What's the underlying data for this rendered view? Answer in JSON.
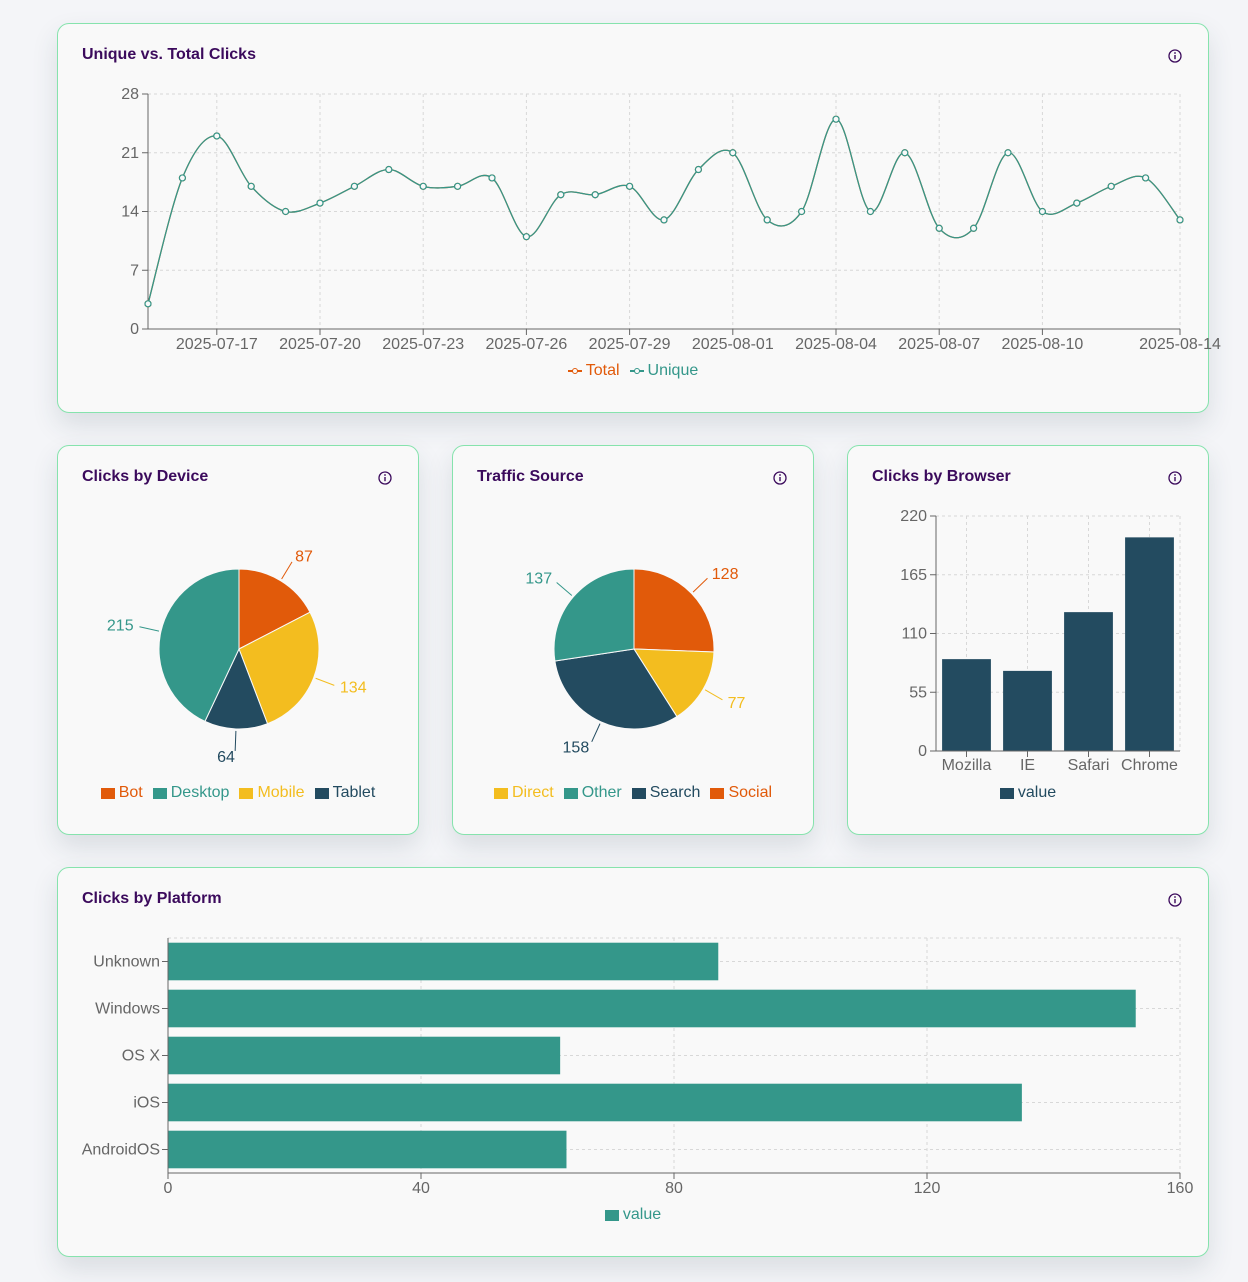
{
  "colors": {
    "teal": "#34978a",
    "navy": "#234b60",
    "orange": "#e15a0a",
    "yellow": "#f3bd1f",
    "title": "#3b0a5c",
    "border": "#86e3ad"
  },
  "cards": {
    "clicks_over_time": {
      "title": "Unique vs. Total Clicks",
      "icon": "info-icon"
    },
    "device": {
      "title": "Clicks by Device",
      "icon": "info-icon"
    },
    "traffic": {
      "title": "Traffic Source",
      "icon": "info-icon"
    },
    "browser": {
      "title": "Clicks by Browser",
      "icon": "info-icon"
    },
    "platform": {
      "title": "Clicks by Platform",
      "icon": "info-icon"
    }
  },
  "chart_data": [
    {
      "id": "clicks_over_time",
      "type": "line",
      "title": "Unique vs. Total Clicks",
      "x": [
        "2025-07-15",
        "2025-07-16",
        "2025-07-17",
        "2025-07-18",
        "2025-07-19",
        "2025-07-20",
        "2025-07-21",
        "2025-07-22",
        "2025-07-23",
        "2025-07-24",
        "2025-07-25",
        "2025-07-26",
        "2025-07-27",
        "2025-07-28",
        "2025-07-29",
        "2025-07-30",
        "2025-07-31",
        "2025-08-01",
        "2025-08-02",
        "2025-08-03",
        "2025-08-04",
        "2025-08-05",
        "2025-08-06",
        "2025-08-07",
        "2025-08-08",
        "2025-08-09",
        "2025-08-10",
        "2025-08-11",
        "2025-08-12",
        "2025-08-13",
        "2025-08-14"
      ],
      "x_ticks": [
        "2025-07-17",
        "2025-07-20",
        "2025-07-23",
        "2025-07-26",
        "2025-07-29",
        "2025-08-01",
        "2025-08-04",
        "2025-08-07",
        "2025-08-10",
        "2025-08-14"
      ],
      "series": [
        {
          "name": "Total",
          "color": "#e15a0a",
          "values": [
            3,
            18,
            23,
            17,
            14,
            15,
            17,
            19,
            17,
            17,
            18,
            11,
            16,
            16,
            17,
            13,
            19,
            21,
            13,
            14,
            25,
            14,
            21,
            12,
            12,
            21,
            14,
            15,
            17,
            18,
            13
          ]
        },
        {
          "name": "Unique",
          "color": "#34978a",
          "values": [
            3,
            18,
            23,
            17,
            14,
            15,
            17,
            19,
            17,
            17,
            18,
            11,
            16,
            16,
            17,
            13,
            19,
            21,
            13,
            14,
            25,
            14,
            21,
            12,
            12,
            21,
            14,
            15,
            17,
            18,
            13
          ]
        }
      ],
      "ylim": [
        0,
        28
      ],
      "y_ticks": [
        0,
        7,
        14,
        21,
        28
      ],
      "grid": true,
      "legend": "bottom"
    },
    {
      "id": "device",
      "type": "pie",
      "title": "Clicks by Device",
      "categories": [
        "Bot",
        "Desktop",
        "Mobile",
        "Tablet"
      ],
      "values": [
        87,
        215,
        134,
        64
      ],
      "colors": [
        "#e15a0a",
        "#34978a",
        "#f3bd1f",
        "#234b60"
      ],
      "slice_order": [
        "Bot",
        "Mobile",
        "Tablet",
        "Desktop"
      ],
      "legend": "bottom"
    },
    {
      "id": "traffic",
      "type": "pie",
      "title": "Traffic Source",
      "categories": [
        "Direct",
        "Other",
        "Search",
        "Social"
      ],
      "values": [
        77,
        137,
        158,
        128
      ],
      "colors": [
        "#f3bd1f",
        "#34978a",
        "#234b60",
        "#e15a0a"
      ],
      "slice_order": [
        "Social",
        "Direct",
        "Search",
        "Other"
      ],
      "legend": "bottom"
    },
    {
      "id": "browser",
      "type": "bar",
      "title": "Clicks by Browser",
      "categories": [
        "Mozilla",
        "IE",
        "Safari",
        "Chrome"
      ],
      "series": [
        {
          "name": "value",
          "color": "#234b60",
          "values": [
            86,
            75,
            130,
            200
          ]
        }
      ],
      "ylim": [
        0,
        220
      ],
      "y_ticks": [
        0,
        55,
        110,
        165,
        220
      ],
      "grid": true,
      "legend": "bottom"
    },
    {
      "id": "platform",
      "type": "bar",
      "orientation": "horizontal",
      "title": "Clicks by Platform",
      "categories": [
        "Unknown",
        "Windows",
        "OS X",
        "iOS",
        "AndroidOS"
      ],
      "series": [
        {
          "name": "value",
          "color": "#34978a",
          "values": [
            87,
            153,
            62,
            135,
            63
          ]
        }
      ],
      "xlim": [
        0,
        160
      ],
      "x_ticks": [
        0,
        40,
        80,
        120,
        160
      ],
      "grid": true,
      "legend": "bottom"
    }
  ]
}
